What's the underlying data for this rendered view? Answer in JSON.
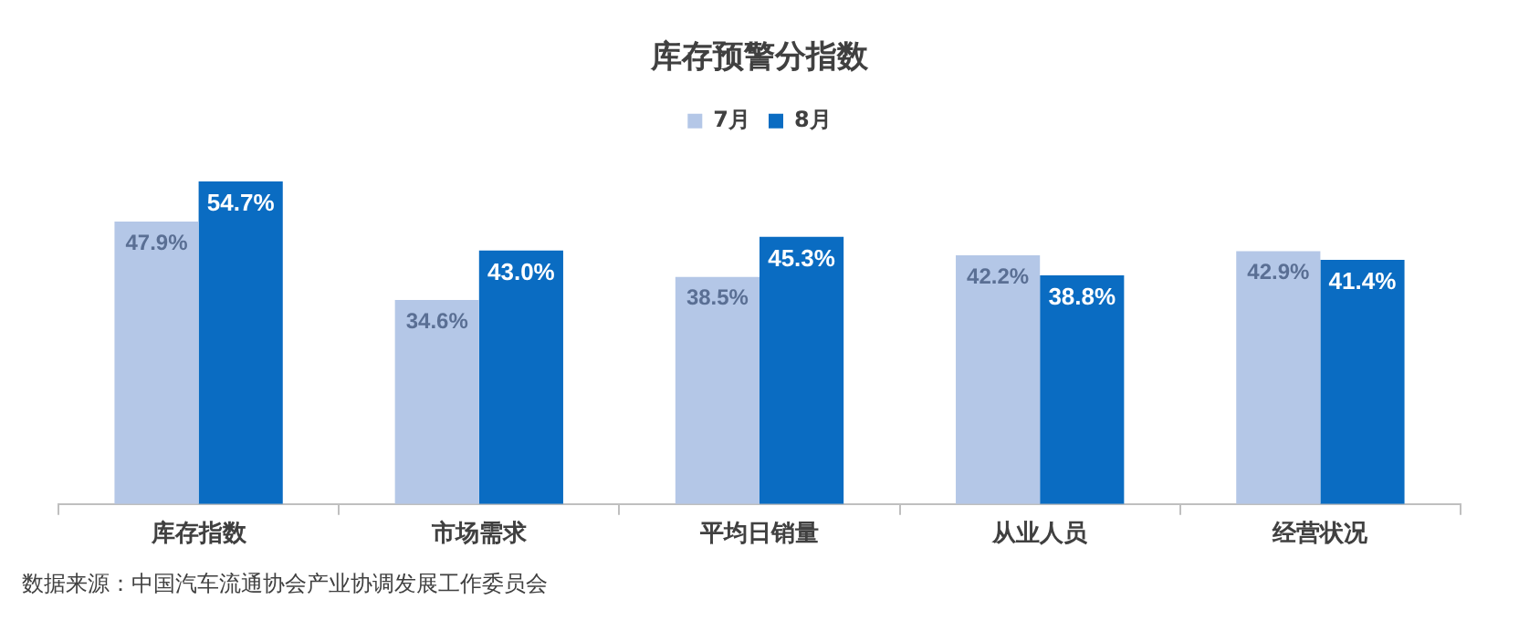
{
  "chart_data": {
    "type": "bar",
    "title": "库存预警分指数",
    "categories": [
      "库存指数",
      "市场需求",
      "平均日销量",
      "从业人员",
      "经营状况"
    ],
    "series": [
      {
        "name": "7月",
        "color": "#b4c7e7",
        "values": [
          47.9,
          34.6,
          38.5,
          42.2,
          42.9
        ],
        "value_labels": [
          "47.9%",
          "34.6%",
          "38.5%",
          "42.2%",
          "42.9%"
        ]
      },
      {
        "name": "8月",
        "color": "#0a6cc2",
        "values": [
          54.7,
          43.0,
          45.3,
          38.8,
          41.4
        ],
        "value_labels": [
          "54.7%",
          "43.0%",
          "45.3%",
          "38.8%",
          "41.4%"
        ]
      }
    ],
    "legend": "top",
    "grid": false,
    "tick_labels": "x",
    "annotations": [
      "数据来源：中国汽车流通协会产业协调发展工作委员会"
    ]
  }
}
